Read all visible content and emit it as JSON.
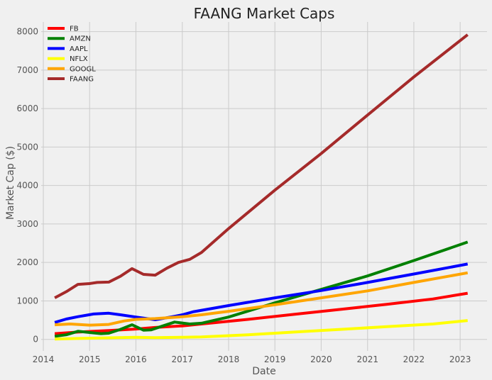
{
  "chart_data": {
    "type": "line",
    "title": "FAANG Market Caps",
    "xlabel": "Date",
    "ylabel": "Market Cap ($)",
    "xlim": [
      "2013-12-15",
      "2023-08-01"
    ],
    "ylim": [
      -300,
      8250
    ],
    "xticks": [
      "2014",
      "2015",
      "2016",
      "2017",
      "2018",
      "2019",
      "2020",
      "2021",
      "2022",
      "2023"
    ],
    "yticks": [
      0,
      1000,
      2000,
      3000,
      4000,
      5000,
      6000,
      7000,
      8000
    ],
    "grid": true,
    "legend_position": "top-left",
    "series": [
      {
        "name": "FB",
        "color": "#ff0000",
        "points": [
          [
            "2014-04-01",
            150
          ],
          [
            "2014-10-01",
            190
          ],
          [
            "2015-06-01",
            230
          ],
          [
            "2016-01-01",
            270
          ],
          [
            "2016-06-01",
            310
          ],
          [
            "2017-01-01",
            350
          ],
          [
            "2017-06-01",
            400
          ],
          [
            "2018-06-01",
            520
          ],
          [
            "2019-06-01",
            650
          ],
          [
            "2020-06-01",
            780
          ],
          [
            "2021-06-01",
            910
          ],
          [
            "2022-06-01",
            1050
          ],
          [
            "2023-03-01",
            1200
          ]
        ]
      },
      {
        "name": "AMZN",
        "color": "#008000",
        "points": [
          [
            "2014-04-01",
            80
          ],
          [
            "2014-07-01",
            120
          ],
          [
            "2014-10-01",
            210
          ],
          [
            "2015-01-01",
            180
          ],
          [
            "2015-04-01",
            150
          ],
          [
            "2015-06-01",
            160
          ],
          [
            "2015-09-01",
            260
          ],
          [
            "2015-12-01",
            380
          ],
          [
            "2016-03-01",
            240
          ],
          [
            "2016-05-01",
            250
          ],
          [
            "2016-08-01",
            350
          ],
          [
            "2016-11-01",
            450
          ],
          [
            "2017-03-01",
            400
          ],
          [
            "2017-06-01",
            420
          ],
          [
            "2018-01-01",
            580
          ],
          [
            "2019-01-01",
            950
          ],
          [
            "2020-01-01",
            1300
          ],
          [
            "2021-01-01",
            1650
          ],
          [
            "2022-01-01",
            2050
          ],
          [
            "2023-03-01",
            2530
          ]
        ]
      },
      {
        "name": "AAPL",
        "color": "#0000ff",
        "points": [
          [
            "2014-04-01",
            440
          ],
          [
            "2014-07-01",
            530
          ],
          [
            "2014-10-01",
            590
          ],
          [
            "2015-02-01",
            660
          ],
          [
            "2015-06-01",
            680
          ],
          [
            "2015-09-01",
            640
          ],
          [
            "2016-01-01",
            580
          ],
          [
            "2016-06-01",
            510
          ],
          [
            "2016-10-01",
            580
          ],
          [
            "2017-01-01",
            640
          ],
          [
            "2017-04-01",
            720
          ],
          [
            "2018-01-01",
            880
          ],
          [
            "2019-01-01",
            1080
          ],
          [
            "2020-01-01",
            1270
          ],
          [
            "2021-01-01",
            1480
          ],
          [
            "2022-01-01",
            1700
          ],
          [
            "2023-03-01",
            1960
          ]
        ]
      },
      {
        "name": "NFLX",
        "color": "#ffff00",
        "points": [
          [
            "2014-04-01",
            10
          ],
          [
            "2014-10-01",
            25
          ],
          [
            "2015-06-01",
            40
          ],
          [
            "2016-01-01",
            55
          ],
          [
            "2016-06-01",
            45
          ],
          [
            "2017-01-01",
            55
          ],
          [
            "2017-06-01",
            65
          ],
          [
            "2018-06-01",
            120
          ],
          [
            "2019-06-01",
            190
          ],
          [
            "2020-06-01",
            260
          ],
          [
            "2021-06-01",
            330
          ],
          [
            "2022-06-01",
            400
          ],
          [
            "2023-03-01",
            490
          ]
        ]
      },
      {
        "name": "GOOGL",
        "color": "#ffa500",
        "points": [
          [
            "2014-04-01",
            380
          ],
          [
            "2014-08-01",
            400
          ],
          [
            "2015-01-01",
            370
          ],
          [
            "2015-06-01",
            390
          ],
          [
            "2015-10-01",
            480
          ],
          [
            "2016-01-01",
            520
          ],
          [
            "2016-06-01",
            540
          ],
          [
            "2017-01-01",
            590
          ],
          [
            "2017-06-01",
            640
          ],
          [
            "2018-01-01",
            730
          ],
          [
            "2019-01-01",
            900
          ],
          [
            "2020-01-01",
            1080
          ],
          [
            "2021-01-01",
            1260
          ],
          [
            "2022-01-01",
            1480
          ],
          [
            "2023-03-01",
            1730
          ]
        ]
      },
      {
        "name": "FAANG",
        "color": "#a52a2a",
        "points": [
          [
            "2014-04-01",
            1080
          ],
          [
            "2014-07-01",
            1240
          ],
          [
            "2014-10-01",
            1430
          ],
          [
            "2015-01-01",
            1450
          ],
          [
            "2015-03-01",
            1480
          ],
          [
            "2015-06-01",
            1490
          ],
          [
            "2015-09-01",
            1640
          ],
          [
            "2015-12-01",
            1840
          ],
          [
            "2016-03-01",
            1690
          ],
          [
            "2016-06-01",
            1670
          ],
          [
            "2016-09-01",
            1850
          ],
          [
            "2016-12-01",
            2000
          ],
          [
            "2017-03-01",
            2080
          ],
          [
            "2017-06-01",
            2260
          ],
          [
            "2018-01-01",
            2880
          ],
          [
            "2019-01-01",
            3880
          ],
          [
            "2020-01-01",
            4830
          ],
          [
            "2021-01-01",
            5830
          ],
          [
            "2022-01-01",
            6820
          ],
          [
            "2023-03-01",
            7920
          ]
        ]
      }
    ]
  }
}
